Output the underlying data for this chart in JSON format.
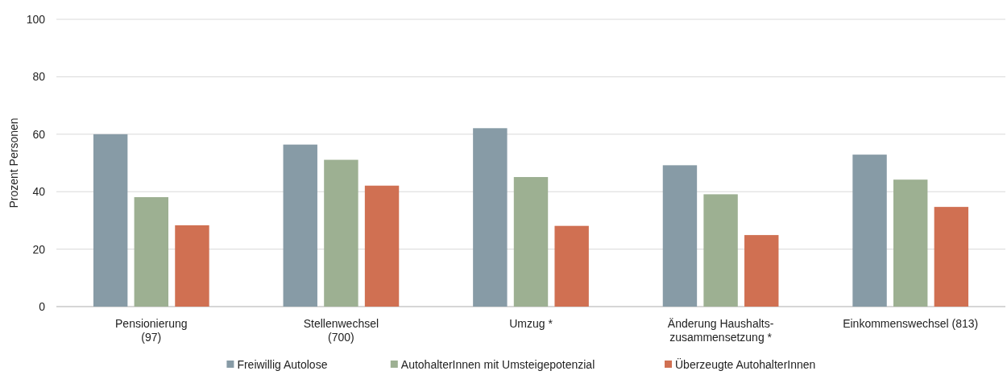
{
  "chart_data": {
    "type": "bar",
    "ylabel": "Prozent Personen",
    "categories": [
      "Pensionierung\n(97)",
      "Stellenwechsel\n(700)",
      "Umzug *",
      "Änderung Haushalts-\nzusammensetzung *",
      "Einkommenswechsel (813)"
    ],
    "series": [
      {
        "name": "Freiwillig Autolose",
        "color": "#879ba6",
        "values": [
          60,
          56.4,
          62.1,
          49.2,
          52.9
        ]
      },
      {
        "name": "AutohalterInnen mit Umsteigepotenzial",
        "color": "#9db092",
        "values": [
          38.1,
          51.1,
          45.1,
          39.1,
          44.2
        ]
      },
      {
        "name": "Überzeugte AutohalterInnen",
        "color": "#d07052",
        "values": [
          28.3,
          42.1,
          28.1,
          24.9,
          34.7
        ]
      }
    ],
    "ylim": [
      0,
      100
    ],
    "yticks": [
      0,
      20,
      40,
      60,
      80,
      100
    ],
    "grid": "y",
    "legend": "bottom"
  }
}
